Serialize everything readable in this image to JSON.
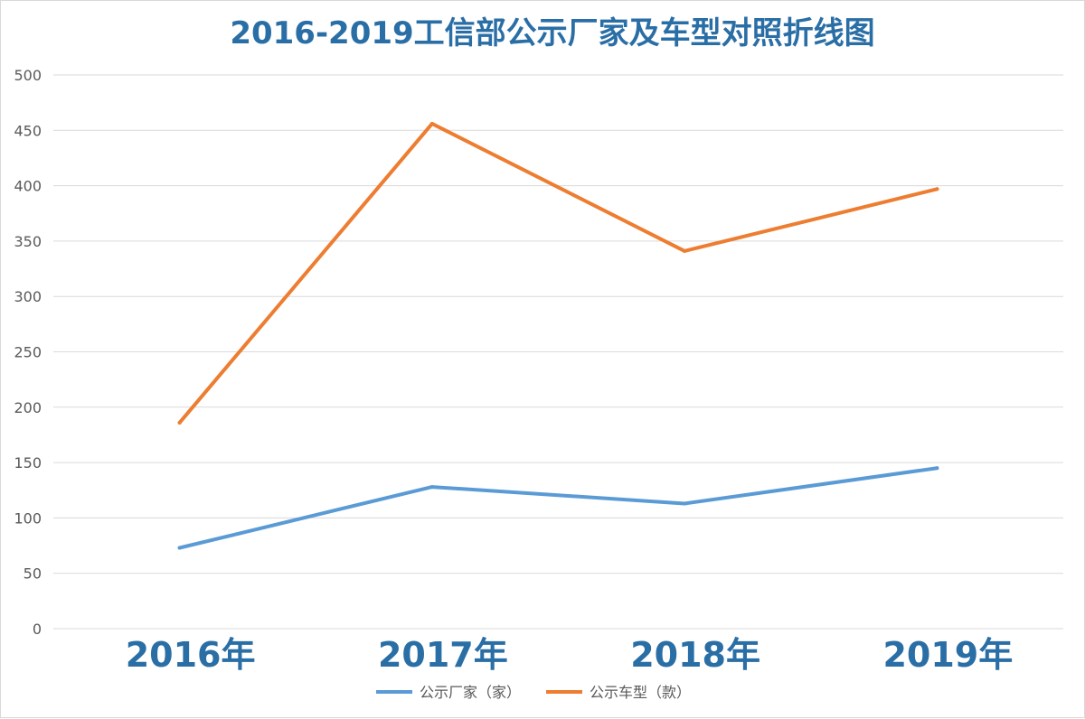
{
  "chart_data": {
    "type": "line",
    "title": "2016-2019工信部公示厂家及车型对照折线图",
    "categories": [
      "2016年",
      "2017年",
      "2018年",
      "2019年"
    ],
    "ylim": [
      0,
      500
    ],
    "y_ticks": [
      0,
      50,
      100,
      150,
      200,
      250,
      300,
      350,
      400,
      450,
      500
    ],
    "grid": true,
    "legend_position": "bottom",
    "series": [
      {
        "name": "公示厂家（家）",
        "values": [
          73,
          128,
          113,
          145
        ],
        "color": "#5b9bd5"
      },
      {
        "name": "公示车型（款）",
        "values": [
          186,
          456,
          341,
          397
        ],
        "color": "#ed7d31"
      }
    ]
  }
}
